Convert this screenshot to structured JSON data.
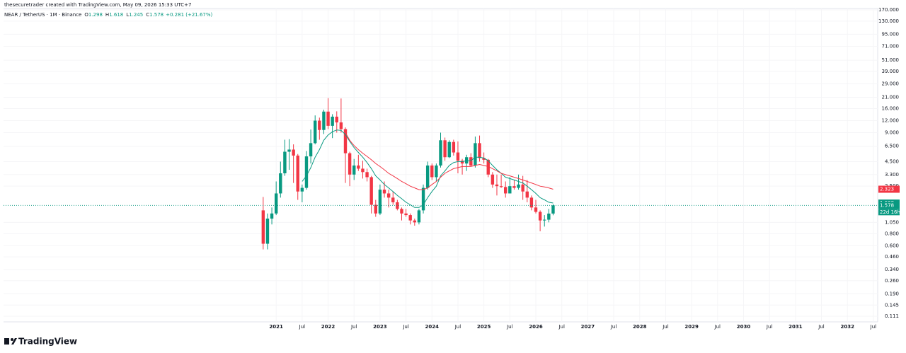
{
  "chart_data": {
    "type": "candlestick",
    "credit": "thesecuretrader created with TradingView.com, May 09, 2026 15:33 UTC+7",
    "symbol": "NEAR / TetherUS · 1M · Binance",
    "status_labels": [
      "O",
      "H",
      "L",
      "C"
    ],
    "change": "+0.281 (+21.67%)",
    "countdown": "22d 16h",
    "brand": "TradingView",
    "log_scale": true,
    "grid": true,
    "up_color": "#089981",
    "down_color": "#f23645",
    "x": [
      "2020-10",
      "2020-11",
      "2020-12",
      "2021-01",
      "2021-02",
      "2021-03",
      "2021-04",
      "2021-05",
      "2021-06",
      "2021-07",
      "2021-08",
      "2021-09",
      "2021-10",
      "2021-11",
      "2021-12",
      "2022-01",
      "2022-02",
      "2022-03",
      "2022-04",
      "2022-05",
      "2022-06",
      "2022-07",
      "2022-08",
      "2022-09",
      "2022-10",
      "2022-11",
      "2022-12",
      "2023-01",
      "2023-02",
      "2023-03",
      "2023-04",
      "2023-05",
      "2023-06",
      "2023-07",
      "2023-08",
      "2023-09",
      "2023-10",
      "2023-11",
      "2023-12",
      "2024-01",
      "2024-02",
      "2024-03",
      "2024-04",
      "2024-05",
      "2024-06",
      "2024-07",
      "2024-08",
      "2024-09",
      "2024-10",
      "2024-11",
      "2024-12",
      "2025-01",
      "2025-02",
      "2025-03",
      "2025-04",
      "2025-05",
      "2025-06",
      "2025-07",
      "2025-08",
      "2025-09",
      "2025-10",
      "2025-11",
      "2025-12",
      "2026-01",
      "2026-02",
      "2026-03",
      "2026-04",
      "2026-05"
    ],
    "open": [
      1.4,
      0.63,
      1.15,
      1.3,
      2.1,
      3.4,
      5.7,
      6.0,
      5.2,
      2.2,
      2.4,
      5.1,
      7.0,
      12.0,
      9.6,
      14.9,
      10.6,
      13.2,
      11.5,
      9.8,
      5.5,
      3.3,
      4.1,
      3.8,
      3.5,
      3.1,
      1.6,
      1.3,
      2.3,
      2.1,
      1.9,
      1.7,
      1.45,
      1.3,
      1.25,
      1.1,
      1.05,
      1.4,
      2.4,
      4.1,
      3.1,
      4.1,
      7.5,
      5.0,
      7.2,
      5.6,
      4.6,
      4.3,
      5.0,
      4.1,
      7.0,
      4.9,
      4.7,
      3.3,
      2.6,
      2.5,
      2.45,
      2.1,
      2.5,
      2.4,
      2.6,
      2.2,
      1.9,
      1.5,
      1.35,
      1.1,
      1.12,
      1.298
    ],
    "high": [
      1.93,
      1.3,
      1.5,
      2.8,
      4.5,
      7.6,
      7.7,
      6.8,
      5.4,
      2.6,
      5.8,
      9.7,
      13.6,
      12.9,
      15.6,
      20.6,
      14.0,
      15.0,
      20.4,
      10.2,
      5.7,
      4.8,
      5.3,
      4.6,
      3.8,
      3.2,
      1.8,
      2.6,
      2.8,
      2.3,
      2.2,
      1.8,
      1.5,
      1.45,
      1.3,
      1.15,
      1.45,
      2.6,
      4.5,
      4.3,
      4.3,
      9.0,
      8.0,
      7.5,
      7.6,
      7.3,
      4.8,
      5.3,
      5.5,
      8.2,
      8.4,
      5.6,
      4.8,
      3.5,
      3.3,
      3.3,
      2.8,
      3.1,
      2.9,
      3.3,
      3.2,
      2.9,
      2.0,
      1.8,
      1.4,
      1.25,
      1.45,
      1.618
    ],
    "low": [
      0.55,
      0.55,
      1.0,
      1.25,
      1.9,
      3.2,
      3.7,
      2.7,
      1.8,
      1.7,
      2.3,
      4.3,
      6.8,
      7.6,
      8.7,
      9.8,
      7.9,
      9.0,
      9.0,
      2.7,
      2.5,
      2.9,
      3.6,
      3.0,
      2.8,
      1.3,
      1.2,
      1.25,
      1.9,
      1.5,
      1.6,
      1.4,
      1.1,
      1.2,
      1.0,
      0.97,
      1.0,
      1.3,
      2.3,
      2.9,
      2.8,
      3.9,
      4.6,
      4.9,
      5.2,
      3.4,
      3.3,
      3.6,
      4.0,
      3.9,
      4.5,
      4.3,
      3.1,
      2.4,
      2.0,
      2.4,
      1.9,
      2.1,
      2.3,
      2.3,
      1.8,
      1.7,
      1.4,
      1.3,
      0.85,
      0.95,
      1.05,
      1.245
    ],
    "close": [
      0.63,
      1.15,
      1.3,
      2.1,
      3.4,
      5.7,
      6.0,
      5.2,
      2.2,
      2.4,
      5.1,
      7.0,
      12.0,
      9.6,
      14.9,
      10.6,
      13.2,
      11.5,
      9.8,
      5.5,
      3.3,
      4.1,
      3.8,
      3.5,
      3.1,
      1.6,
      1.3,
      2.3,
      2.1,
      1.9,
      1.7,
      1.45,
      1.3,
      1.25,
      1.1,
      1.05,
      1.4,
      2.4,
      4.1,
      3.1,
      4.1,
      7.5,
      5.0,
      7.2,
      5.6,
      4.6,
      4.3,
      5.0,
      4.1,
      7.0,
      4.9,
      4.7,
      3.3,
      2.6,
      2.5,
      2.45,
      2.1,
      2.5,
      2.4,
      2.6,
      2.2,
      1.9,
      1.5,
      1.35,
      1.1,
      1.12,
      1.297,
      1.578
    ],
    "series": [
      {
        "name": "MA fast",
        "color": "#089981",
        "values": [
          null,
          null,
          null,
          null,
          null,
          null,
          null,
          null,
          null,
          2.8,
          3.2,
          3.9,
          5.0,
          6.0,
          7.5,
          8.5,
          9.2,
          9.6,
          9.5,
          8.6,
          7.3,
          6.3,
          5.6,
          5.0,
          4.4,
          3.8,
          3.2,
          2.9,
          2.6,
          2.4,
          2.2,
          2.0,
          1.85,
          1.7,
          1.6,
          1.5,
          1.5,
          1.6,
          1.9,
          2.2,
          2.5,
          3.2,
          3.6,
          4.1,
          4.4,
          4.5,
          4.5,
          4.6,
          4.6,
          5.0,
          5.0,
          4.9,
          4.6,
          4.1,
          3.7,
          3.4,
          3.1,
          3.0,
          2.9,
          2.8,
          2.7,
          2.5,
          2.3,
          2.1,
          1.9,
          1.8,
          1.7,
          1.668
        ]
      },
      {
        "name": "MA slow",
        "color": "#f23645",
        "values": [
          null,
          null,
          null,
          null,
          null,
          null,
          null,
          null,
          null,
          null,
          null,
          null,
          null,
          null,
          null,
          null,
          null,
          null,
          null,
          9.0,
          7.5,
          6.6,
          6.0,
          5.5,
          5.1,
          4.7,
          4.3,
          4.0,
          3.7,
          3.4,
          3.2,
          3.0,
          2.8,
          2.65,
          2.5,
          2.4,
          2.3,
          2.3,
          2.4,
          2.6,
          2.8,
          3.1,
          3.4,
          3.6,
          3.8,
          3.9,
          4.0,
          4.0,
          4.0,
          4.1,
          4.2,
          4.1,
          4.0,
          3.8,
          3.6,
          3.4,
          3.3,
          3.2,
          3.1,
          3.0,
          2.9,
          2.8,
          2.7,
          2.6,
          2.5,
          2.45,
          2.4,
          2.323
        ]
      }
    ],
    "xlim": [
      "2015-10",
      "2032-08"
    ],
    "xticks": [
      {
        "value": "2021-01",
        "label": "2021"
      },
      {
        "value": "2021-07",
        "label": "Jul"
      },
      {
        "value": "2022-01",
        "label": "2022"
      },
      {
        "value": "2022-07",
        "label": "Jul"
      },
      {
        "value": "2023-01",
        "label": "2023"
      },
      {
        "value": "2023-07",
        "label": "Jul"
      },
      {
        "value": "2024-01",
        "label": "2024"
      },
      {
        "value": "2024-07",
        "label": "Jul"
      },
      {
        "value": "2025-01",
        "label": "2025"
      },
      {
        "value": "2025-07",
        "label": "Jul"
      },
      {
        "value": "2026-01",
        "label": "2026"
      },
      {
        "value": "2026-07",
        "label": "Jul"
      },
      {
        "value": "2027-01",
        "label": "2027"
      },
      {
        "value": "2027-07",
        "label": "Jul"
      },
      {
        "value": "2028-01",
        "label": "2028"
      },
      {
        "value": "2028-07",
        "label": "Jul"
      },
      {
        "value": "2029-01",
        "label": "2029"
      },
      {
        "value": "2029-07",
        "label": "Jul"
      },
      {
        "value": "2030-01",
        "label": "2030"
      },
      {
        "value": "2030-07",
        "label": "Jul"
      },
      {
        "value": "2031-01",
        "label": "2031"
      },
      {
        "value": "2031-07",
        "label": "Jul"
      },
      {
        "value": "2032-01",
        "label": "2032"
      },
      {
        "value": "2032-07",
        "label": "Jul"
      }
    ],
    "ylim": [
      0.097,
      182
    ],
    "yticks": [
      {
        "value": 170,
        "label": "170.000"
      },
      {
        "value": 130,
        "label": "130.000"
      },
      {
        "value": 95,
        "label": "95.000"
      },
      {
        "value": 71,
        "label": "71.000"
      },
      {
        "value": 51,
        "label": "51.000"
      },
      {
        "value": 39,
        "label": "39.000"
      },
      {
        "value": 29,
        "label": "29.000"
      },
      {
        "value": 21,
        "label": "21.000"
      },
      {
        "value": 16,
        "label": "16.000"
      },
      {
        "value": 12,
        "label": "12.000"
      },
      {
        "value": 9,
        "label": "9.000"
      },
      {
        "value": 6.5,
        "label": "6.500"
      },
      {
        "value": 4.5,
        "label": "4.500"
      },
      {
        "value": 3.3,
        "label": "3.300"
      },
      {
        "value": 2.5,
        "label": "2.500"
      },
      {
        "value": 1.05,
        "label": "1.050"
      },
      {
        "value": 0.8,
        "label": "0.800"
      },
      {
        "value": 0.6,
        "label": "0.600"
      },
      {
        "value": 0.46,
        "label": "0.460"
      },
      {
        "value": 0.34,
        "label": "0.340"
      },
      {
        "value": 0.26,
        "label": "0.260"
      },
      {
        "value": 0.19,
        "label": "0.190"
      },
      {
        "value": 0.145,
        "label": "0.145"
      },
      {
        "value": 0.111,
        "label": "0.111"
      }
    ]
  }
}
